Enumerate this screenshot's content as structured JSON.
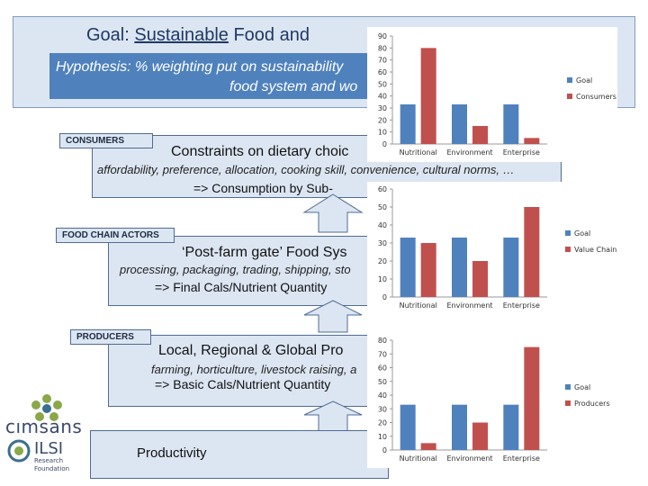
{
  "goal": {
    "prefix": "Goal: ",
    "underlined": "Sustainable",
    "suffix": " Food and"
  },
  "hypothesis": {
    "line1": "Hypothesis: % weighting put on sustainability",
    "line2": "food system and wo"
  },
  "consumers": {
    "tag": "CONSUMERS",
    "title": "Constraints on dietary choic",
    "detail": "affordability, preference, allocation, cooking skill, convenience, cultural norms, …",
    "result": "=> Consumption by Sub-"
  },
  "food_chain": {
    "tag": "FOOD CHAIN ACTORS",
    "title": "‘Post-farm gate’ Food Sys",
    "detail": "processing, packaging, trading, shipping, sto",
    "result": "=> Final Cals/Nutrient Quantity"
  },
  "producers": {
    "tag": "PRODUCERS",
    "title": "Local, Regional & Global Pro",
    "detail": "farming, horticulture, livestock raising, a",
    "result": "=> Basic Cals/Nutrient Quantity",
    "productivity": "Productivity"
  },
  "logos": {
    "cimsans": "CIMSANS",
    "ilsi": "ILSI",
    "ilsi_sub1": "Research",
    "ilsi_sub2": "Foundation"
  },
  "colors": {
    "goal": "#4f81bd",
    "second": "#c0504d",
    "box_fill": "#dce6f2",
    "hyp_fill": "#4f81bd"
  },
  "chart_data": [
    {
      "type": "bar",
      "categories": [
        "Nutritional",
        "Environment",
        "Enterprise"
      ],
      "series": [
        {
          "name": "Goal",
          "values": [
            33,
            33,
            33
          ]
        },
        {
          "name": "Consumers",
          "values": [
            80,
            15,
            5
          ]
        }
      ],
      "ylim": [
        0,
        90
      ],
      "yticks": [
        "0",
        "10",
        "20",
        "30",
        "40",
        "50",
        "60",
        "70",
        "80",
        "90"
      ],
      "legend": "right"
    },
    {
      "type": "bar",
      "categories": [
        "Nutritional",
        "Environment",
        "Enterprise"
      ],
      "series": [
        {
          "name": "Goal",
          "values": [
            33,
            33,
            33
          ]
        },
        {
          "name": "Value Chain",
          "values": [
            30,
            20,
            50
          ]
        }
      ],
      "ylim": [
        0,
        60
      ],
      "yticks": [
        "0",
        "10",
        "20",
        "30",
        "40",
        "50",
        "60"
      ],
      "legend": "right"
    },
    {
      "type": "bar",
      "categories": [
        "Nutritional",
        "Environment",
        "Enterprise"
      ],
      "series": [
        {
          "name": "Goal",
          "values": [
            33,
            33,
            33
          ]
        },
        {
          "name": "Producers",
          "values": [
            5,
            20,
            75
          ]
        }
      ],
      "ylim": [
        0,
        80
      ],
      "yticks": [
        "0",
        "10",
        "20",
        "30",
        "40",
        "50",
        "60",
        "70",
        "80"
      ],
      "legend": "right"
    }
  ]
}
